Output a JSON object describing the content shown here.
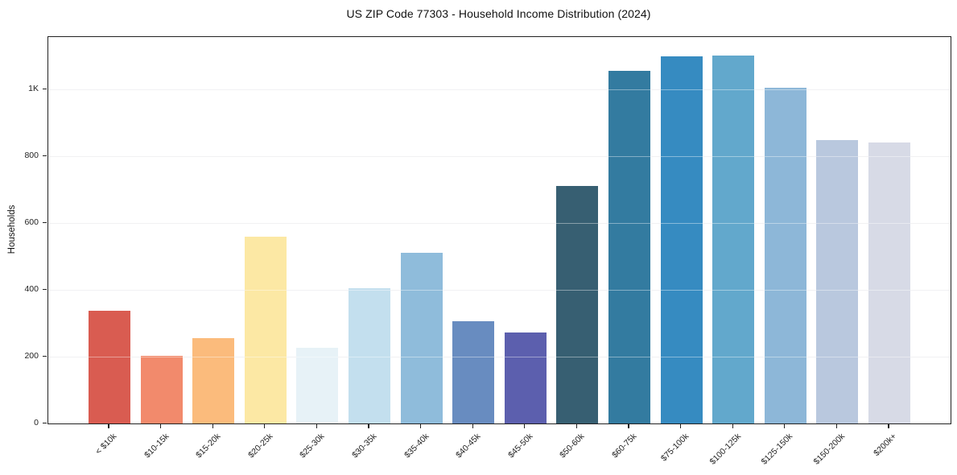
{
  "chart_data": {
    "type": "bar",
    "title": "US ZIP Code 77303 - Household Income Distribution (2024)",
    "xlabel": "",
    "ylabel": "Households",
    "categories": [
      "< $10k",
      "$10-15k",
      "$15-20k",
      "$20-25k",
      "$25-30k",
      "$30-35k",
      "$35-40k",
      "$40-45k",
      "$45-50k",
      "$50-60k",
      "$60-75k",
      "$75-100k",
      "$100-125k",
      "$125-150k",
      "$150-200k",
      "$200k+"
    ],
    "values": [
      338,
      202,
      256,
      560,
      227,
      405,
      512,
      305,
      273,
      710,
      1055,
      1098,
      1102,
      1006,
      848,
      842
    ],
    "bar_colors": [
      "#d95c51",
      "#f28a6c",
      "#fbbb7c",
      "#fce8a4",
      "#e7f2f7",
      "#c3dfee",
      "#8fbcdb",
      "#688cc0",
      "#5c5fae",
      "#375f72",
      "#337ba0",
      "#368bc1",
      "#62a8cc",
      "#8db7d8",
      "#b9c8de",
      "#d7dae6"
    ],
    "yticks": [
      {
        "value": 0,
        "label": "0"
      },
      {
        "value": 200,
        "label": "200"
      },
      {
        "value": 400,
        "label": "400"
      },
      {
        "value": 600,
        "label": "600"
      },
      {
        "value": 800,
        "label": "800"
      },
      {
        "value": 1000,
        "label": "1K"
      }
    ],
    "ylim": [
      0,
      1157
    ],
    "grid": "horizontal",
    "legend_position": "none"
  },
  "style_colors": {
    "background": "#ffffff",
    "spine": "#222222",
    "gridline": "#e8e8eb",
    "text": "#111111",
    "tick_text": "#222222"
  }
}
